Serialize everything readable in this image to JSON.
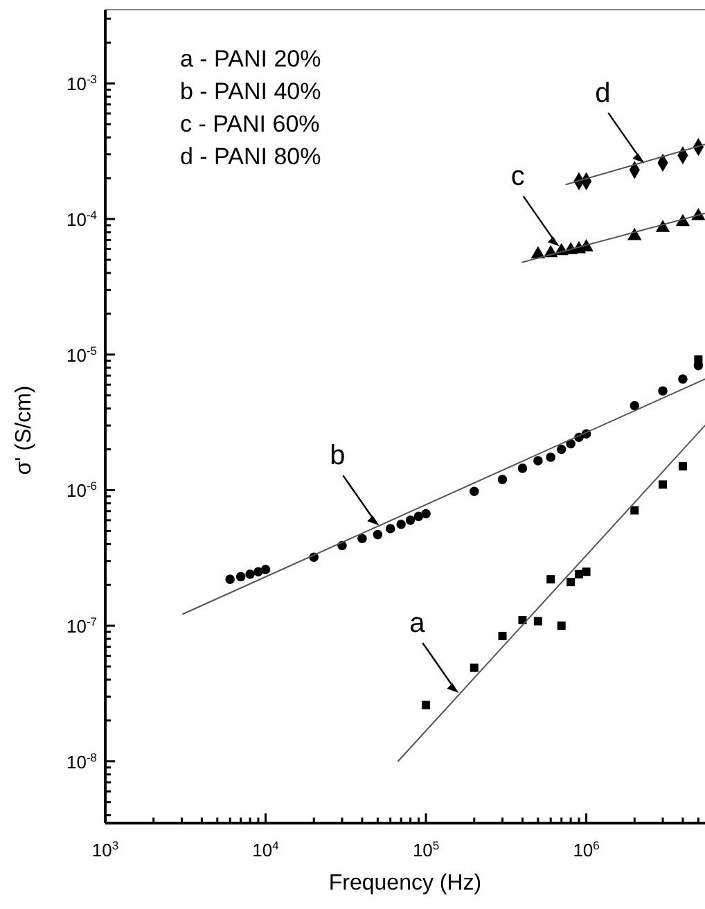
{
  "chart_data": {
    "type": "scatter",
    "xlabel": "Frequency (Hz)",
    "ylabel": "σ' (S/cm)",
    "log": "xy",
    "grid": false,
    "xlim": [
      1000,
      5500000
    ],
    "ylim": [
      3.5e-09,
      0.0035
    ],
    "xticks": [
      {
        "value": 1000,
        "label": "10$^{3}$"
      },
      {
        "value": 2000,
        "label": null
      },
      {
        "value": 3000,
        "label": null
      },
      {
        "value": 4000,
        "label": null
      },
      {
        "value": 5000,
        "label": null
      },
      {
        "value": 6000,
        "label": null
      },
      {
        "value": 7000,
        "label": null
      },
      {
        "value": 8000,
        "label": null
      },
      {
        "value": 9000,
        "label": null
      },
      {
        "value": 10000,
        "label": "10$^{4}$"
      },
      {
        "value": 20000,
        "label": null
      },
      {
        "value": 30000,
        "label": null
      },
      {
        "value": 40000,
        "label": null
      },
      {
        "value": 50000,
        "label": null
      },
      {
        "value": 60000,
        "label": null
      },
      {
        "value": 70000,
        "label": null
      },
      {
        "value": 80000,
        "label": null
      },
      {
        "value": 90000,
        "label": null
      },
      {
        "value": 100000,
        "label": "10$^{5}$"
      },
      {
        "value": 200000,
        "label": null
      },
      {
        "value": 300000,
        "label": null
      },
      {
        "value": 400000,
        "label": null
      },
      {
        "value": 500000,
        "label": null
      },
      {
        "value": 600000,
        "label": null
      },
      {
        "value": 700000,
        "label": null
      },
      {
        "value": 800000,
        "label": null
      },
      {
        "value": 900000,
        "label": null
      },
      {
        "value": 1000000,
        "label": "10$^{6}$"
      },
      {
        "value": 2000000,
        "label": null
      },
      {
        "value": 3000000,
        "label": null
      },
      {
        "value": 4000000,
        "label": null
      },
      {
        "value": 5000000,
        "label": null
      }
    ],
    "yticks": [
      {
        "value": 4e-09,
        "label": null
      },
      {
        "value": 5e-09,
        "label": null
      },
      {
        "value": 6e-09,
        "label": null
      },
      {
        "value": 7e-09,
        "label": null
      },
      {
        "value": 8e-09,
        "label": null
      },
      {
        "value": 9e-09,
        "label": null
      },
      {
        "value": 1e-08,
        "label": "10$^{-8}$"
      },
      {
        "value": 2e-08,
        "label": null
      },
      {
        "value": 3e-08,
        "label": null
      },
      {
        "value": 4e-08,
        "label": null
      },
      {
        "value": 5e-08,
        "label": null
      },
      {
        "value": 6e-08,
        "label": null
      },
      {
        "value": 7e-08,
        "label": null
      },
      {
        "value": 8e-08,
        "label": null
      },
      {
        "value": 9e-08,
        "label": null
      },
      {
        "value": 1e-07,
        "label": "10$^{-7}$"
      },
      {
        "value": 2e-07,
        "label": null
      },
      {
        "value": 3e-07,
        "label": null
      },
      {
        "value": 4e-07,
        "label": null
      },
      {
        "value": 5e-07,
        "label": null
      },
      {
        "value": 6e-07,
        "label": null
      },
      {
        "value": 7e-07,
        "label": null
      },
      {
        "value": 8e-07,
        "label": null
      },
      {
        "value": 9e-07,
        "label": null
      },
      {
        "value": 1e-06,
        "label": "10$^{-6}$"
      },
      {
        "value": 2e-06,
        "label": null
      },
      {
        "value": 3e-06,
        "label": null
      },
      {
        "value": 4e-06,
        "label": null
      },
      {
        "value": 5e-06,
        "label": null
      },
      {
        "value": 6e-06,
        "label": null
      },
      {
        "value": 7e-06,
        "label": null
      },
      {
        "value": 8e-06,
        "label": null
      },
      {
        "value": 9e-06,
        "label": null
      },
      {
        "value": 1e-05,
        "label": "10$^{-5}$"
      },
      {
        "value": 2e-05,
        "label": null
      },
      {
        "value": 3e-05,
        "label": null
      },
      {
        "value": 4e-05,
        "label": null
      },
      {
        "value": 5e-05,
        "label": null
      },
      {
        "value": 6e-05,
        "label": null
      },
      {
        "value": 7e-05,
        "label": null
      },
      {
        "value": 8e-05,
        "label": null
      },
      {
        "value": 9e-05,
        "label": null
      },
      {
        "value": 0.0001,
        "label": "10$^{-4}$"
      },
      {
        "value": 0.0002,
        "label": null
      },
      {
        "value": 0.0003,
        "label": null
      },
      {
        "value": 0.0004,
        "label": null
      },
      {
        "value": 0.0005,
        "label": null
      },
      {
        "value": 0.0006,
        "label": null
      },
      {
        "value": 0.0007,
        "label": null
      },
      {
        "value": 0.0008,
        "label": null
      },
      {
        "value": 0.0009,
        "label": null
      },
      {
        "value": 0.001,
        "label": "10$^{-3}$"
      },
      {
        "value": 0.002,
        "label": null
      },
      {
        "value": 0.003,
        "label": null
      }
    ],
    "series": [
      {
        "marker": "square",
        "color": "#000000",
        "x": [
          100000,
          200000,
          300000,
          400000,
          500000,
          600000,
          700000,
          800000,
          900000,
          1000000,
          2000000,
          3000000,
          4000000,
          5000000
        ],
        "values": [
          2.6e-08,
          4.9e-08,
          8.4e-08,
          1.1e-07,
          1.08e-07,
          2.2e-07,
          1e-07,
          2.1e-07,
          2.4e-07,
          2.5e-07,
          7.1e-07,
          1.1e-06,
          1.5e-06,
          9.2e-06
        ]
      },
      {
        "marker": "circle",
        "color": "#000000",
        "x": [
          6000,
          7000,
          8000,
          9000,
          10000,
          20000,
          30000,
          40000,
          50000,
          60000,
          70000,
          80000,
          90000,
          100000,
          200000,
          300000,
          400000,
          500000,
          600000,
          700000,
          800000,
          900000,
          1000000,
          2000000,
          3000000,
          4000000,
          5000000
        ],
        "values": [
          2.2e-07,
          2.3e-07,
          2.4e-07,
          2.5e-07,
          2.6e-07,
          3.2e-07,
          3.9e-07,
          4.4e-07,
          4.7e-07,
          5.2e-07,
          5.6e-07,
          6e-07,
          6.4e-07,
          6.7e-07,
          9.8e-07,
          1.2e-06,
          1.45e-06,
          1.65e-06,
          1.75e-06,
          2e-06,
          2.2e-06,
          2.45e-06,
          2.6e-06,
          4.2e-06,
          5.4e-06,
          6.6e-06,
          8.3e-06
        ]
      },
      {
        "marker": "triangle",
        "color": "#000000",
        "x": [
          500000,
          600000,
          700000,
          800000,
          900000,
          1000000,
          2000000,
          3000000,
          4000000,
          5000000
        ],
        "values": [
          5.5e-05,
          5.6e-05,
          5.8e-05,
          5.9e-05,
          6e-05,
          6.2e-05,
          7.5e-05,
          8.6e-05,
          9.5e-05,
          0.000105
        ]
      },
      {
        "marker": "diamond",
        "color": "#000000",
        "x": [
          900000,
          1000000,
          2000000,
          3000000,
          4000000,
          5000000
        ],
        "values": [
          0.00019,
          0.00019,
          0.00023,
          0.00026,
          0.000295,
          0.00034
        ]
      },
      {
        "type": "line",
        "color": "#555555",
        "x": [
          67000,
          5500000
        ],
        "values": [
          1e-08,
          3e-06
        ]
      },
      {
        "type": "line",
        "color": "#555555",
        "x": [
          3050,
          5500000
        ],
        "values": [
          1.22e-07,
          6.6e-06
        ]
      },
      {
        "type": "line",
        "color": "#555555",
        "x": [
          400000,
          5500000
        ],
        "values": [
          4.8e-05,
          0.00011
        ]
      },
      {
        "type": "line",
        "color": "#555555",
        "x": [
          750000,
          5500000
        ],
        "values": [
          0.00018,
          0.000355
        ]
      }
    ],
    "annotations": [
      "a - PANI 20%",
      "b - PANI 40%",
      "c - PANI 60%",
      "d - PANI 80%",
      {
        "text": "a",
        "x": 160000,
        "y": 3.2e-08
      },
      {
        "text": "b",
        "x": 51000,
        "y": 5.5e-07
      },
      {
        "text": "c",
        "x": 680000,
        "y": 6.3e-05
      },
      {
        "text": "d",
        "x": 2300000,
        "y": 0.00026
      }
    ]
  }
}
